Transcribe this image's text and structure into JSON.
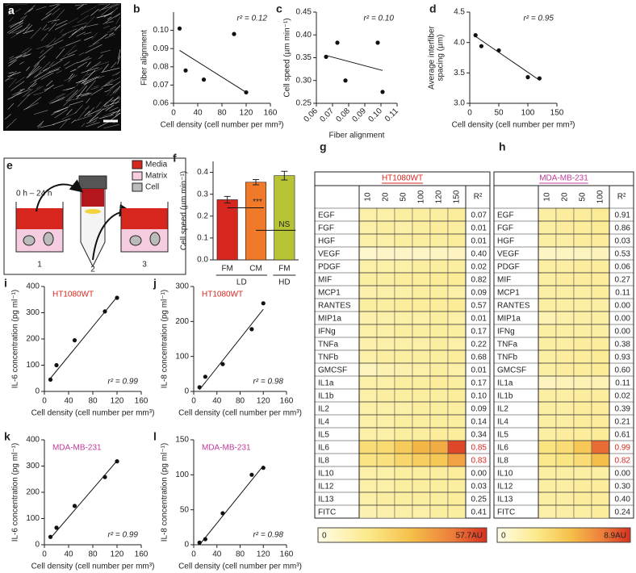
{
  "image": {
    "panel_label": "a"
  },
  "diagram": {
    "panel_label": "e",
    "time": "0 h – 24 h",
    "legend": [
      "Media",
      "Matrix",
      "Cell"
    ],
    "steps": [
      "1",
      "2",
      "3"
    ]
  },
  "chart_data": [
    {
      "type": "scatter",
      "panel_label": "b",
      "x_label": "Cell density (cell number per mm³)",
      "y_label": [
        "Fiber alignment"
      ],
      "x": [
        10,
        20,
        50,
        100,
        120
      ],
      "values": [
        0.101,
        0.078,
        0.073,
        0.098,
        0.066
      ],
      "color": "#111",
      "fit": {
        "x": [
          10,
          120
        ],
        "y": [
          0.089,
          0.066
        ]
      },
      "annotation": "r² = 0.12",
      "annotation_corner": "top-right",
      "xlim": [
        0,
        160
      ],
      "xticks": [
        0,
        40,
        80,
        120,
        160
      ],
      "ylim": [
        0.06,
        0.11
      ],
      "yticks": [
        0.06,
        0.07,
        0.08,
        0.09,
        {
          "value": 0.1,
          "label": "0.10"
        }
      ]
    },
    {
      "type": "scatter",
      "panel_label": "c",
      "x_label": "Fiber alignment",
      "y_label": [
        "Cell speed (µm min⁻¹)"
      ],
      "x": [
        0.066,
        0.073,
        0.078,
        0.098,
        0.101
      ],
      "values": [
        0.352,
        0.383,
        0.3,
        0.383,
        0.275
      ],
      "color": "#111",
      "fit": {
        "x": [
          0.066,
          0.101
        ],
        "y": [
          0.355,
          0.322
        ]
      },
      "annotation": "r² = 0.10",
      "annotation_corner": "top-right",
      "xlim": [
        0.06,
        0.11
      ],
      "xticks": [
        0.06,
        0.07,
        0.08,
        0.09,
        {
          "value": 0.1,
          "label": "0.10"
        },
        0.11
      ],
      "xtick_rotation": -45,
      "ylim": [
        0.25,
        0.45
      ],
      "yticks": [
        0.25,
        {
          "value": 0.3,
          "label": "0.30"
        },
        0.35,
        {
          "value": 0.4,
          "label": "0.40"
        },
        0.45
      ]
    },
    {
      "type": "scatter",
      "panel_label": "d",
      "x_label": "Cell density (cell number per mm³)",
      "y_label": [
        "Average interfiber",
        "spacing (µm)"
      ],
      "x": [
        10,
        20,
        50,
        100,
        120
      ],
      "values": [
        4.12,
        3.94,
        3.87,
        3.43,
        3.41
      ],
      "color": "#111",
      "fit": {
        "x": [
          10,
          120
        ],
        "y": [
          4.1,
          3.38
        ]
      },
      "annotation": "r² = 0.95",
      "annotation_corner": "top-right",
      "xlim": [
        0,
        150
      ],
      "xticks": [
        0,
        50,
        100,
        150
      ],
      "ylim": [
        3.0,
        4.5
      ],
      "yticks": [
        {
          "value": 3,
          "label": "3.0"
        },
        3.5,
        {
          "value": 4,
          "label": "4.0"
        },
        4.5
      ]
    },
    {
      "type": "bar",
      "panel_label": "f",
      "y_label": [
        "Cell speed (µm min⁻¹)"
      ],
      "categories": [
        "FM",
        "CM",
        "FM"
      ],
      "group_labels": [
        "LD",
        "HD"
      ],
      "values": [
        0.275,
        0.355,
        0.385
      ],
      "errors": [
        0.015,
        0.012,
        0.02
      ],
      "colors": [
        "#d7261e",
        "#f07a2a",
        "#b5c334"
      ],
      "annotations": [
        "***",
        "NS"
      ],
      "ylim": [
        0,
        0.45
      ],
      "yticks": [
        {
          "value": 0,
          "label": "0.0"
        },
        0.1,
        0.2,
        0.3,
        0.4
      ]
    },
    {
      "type": "heatmap",
      "panel_label": "g",
      "title": "HT1080WT",
      "title_color": "#d7261e",
      "columns": [
        10,
        20,
        50,
        100,
        120,
        150
      ],
      "r2_header": "R²",
      "rows": [
        "EGF",
        "FGF",
        "HGF",
        "VEGF",
        "PDGF",
        "MIF",
        "MCP1",
        "RANTES",
        "MIP1a",
        "IFNg",
        "TNFa",
        "TNFb",
        "GMCSF",
        "IL1a",
        "IL1b",
        "IL2",
        "IL4",
        "IL5",
        "IL6",
        "IL8",
        "IL10",
        "IL12",
        "IL13",
        "FITC"
      ],
      "values": [
        [
          12,
          12,
          13,
          13,
          13,
          14
        ],
        [
          12,
          13,
          12,
          13,
          14,
          13
        ],
        [
          12,
          12,
          13,
          13,
          13,
          14
        ],
        [
          5,
          6,
          6,
          6,
          7,
          7
        ],
        [
          12,
          12,
          12,
          13,
          13,
          13
        ],
        [
          13,
          13,
          14,
          14,
          15,
          15
        ],
        [
          11,
          12,
          12,
          13,
          13,
          12
        ],
        [
          13,
          13,
          14,
          14,
          14,
          15
        ],
        [
          11,
          12,
          12,
          12,
          13,
          12
        ],
        [
          12,
          12,
          13,
          13,
          13,
          13
        ],
        [
          11,
          12,
          12,
          12,
          13,
          12
        ],
        [
          12,
          13,
          13,
          13,
          13,
          14
        ],
        [
          8,
          10,
          11,
          12,
          13,
          12
        ],
        [
          12,
          12,
          13,
          13,
          14,
          13
        ],
        [
          12,
          13,
          13,
          13,
          13,
          14
        ],
        [
          12,
          12,
          12,
          13,
          13,
          13
        ],
        [
          12,
          12,
          13,
          13,
          13,
          13
        ],
        [
          12,
          12,
          13,
          13,
          14,
          14
        ],
        [
          22,
          23,
          28,
          34,
          36,
          54
        ],
        [
          19,
          20,
          24,
          27,
          29,
          38
        ],
        [
          12,
          12,
          13,
          13,
          13,
          14
        ],
        [
          12,
          12,
          13,
          13,
          13,
          13
        ],
        [
          12,
          13,
          13,
          13,
          13,
          14
        ],
        [
          10,
          11,
          12,
          12,
          13,
          13
        ]
      ],
      "r2": [
        0.07,
        0.01,
        0.01,
        {
          "value": 0.4,
          "label": "0.40"
        },
        0.02,
        0.82,
        0.09,
        0.57,
        0.01,
        0.17,
        0.22,
        0.68,
        0.01,
        0.17,
        {
          "value": 0.1,
          "label": "0.10"
        },
        0.09,
        0.14,
        0.34,
        0.85,
        0.83,
        {
          "value": 0,
          "label": "0.00"
        },
        0.03,
        0.25,
        0.41
      ],
      "highlight_rows": [
        18,
        19
      ],
      "highlight_color": "#d7261e",
      "zlim": [
        0,
        57.7
      ],
      "colorbar_ticks": [
        0,
        {
          "value": 57.7,
          "label": "57.7AU"
        }
      ]
    },
    {
      "type": "heatmap",
      "panel_label": "h",
      "title": "MDA-MB-231",
      "title_color": "#c0399a",
      "columns": [
        10,
        20,
        50,
        100
      ],
      "r2_header": "R²",
      "rows": [
        "EGF",
        "FGF",
        "HGF",
        "VEGF",
        "PDGF",
        "MIF",
        "MCP1",
        "RANTES",
        "MIP1a",
        "IFNg",
        "TNFa",
        "TNFb",
        "GMCSF",
        "IL1a",
        "IL1b",
        "IL2",
        "IL4",
        "IL5",
        "IL6",
        "IL8",
        "IL10",
        "IL12",
        "IL13",
        "FITC"
      ],
      "values": [
        [
          2.0,
          2.1,
          2.2,
          2.4
        ],
        [
          2.0,
          2.1,
          2.2,
          2.4
        ],
        [
          2.0,
          2.0,
          2.1,
          2.2
        ],
        [
          1.0,
          1.1,
          1.2,
          1.3
        ],
        [
          2.0,
          2.0,
          2.1,
          2.1
        ],
        [
          2.0,
          2.1,
          2.1,
          2.2
        ],
        [
          1.9,
          2.0,
          2.0,
          2.1
        ],
        [
          2.0,
          2.0,
          2.0,
          2.0
        ],
        [
          1.5,
          1.8,
          1.9,
          2.0
        ],
        [
          2.0,
          2.0,
          2.0,
          2.0
        ],
        [
          2.0,
          2.0,
          2.1,
          2.1
        ],
        [
          2.0,
          2.1,
          2.2,
          2.4
        ],
        [
          2.0,
          2.1,
          2.2,
          2.3
        ],
        [
          1.2,
          1.4,
          1.5,
          1.5
        ],
        [
          2.0,
          2.0,
          2.1,
          2.1
        ],
        [
          2.0,
          2.0,
          2.1,
          2.2
        ],
        [
          2.0,
          2.0,
          2.1,
          2.2
        ],
        [
          2.0,
          2.1,
          2.2,
          2.3
        ],
        [
          3.0,
          3.4,
          4.5,
          7.5
        ],
        [
          2.6,
          2.9,
          3.4,
          5.0
        ],
        [
          2.0,
          2.0,
          2.0,
          2.0
        ],
        [
          2.0,
          2.0,
          2.1,
          2.2
        ],
        [
          2.0,
          2.0,
          2.1,
          2.2
        ],
        [
          1.8,
          1.9,
          2.0,
          2.1
        ]
      ],
      "r2": [
        0.91,
        0.86,
        0.03,
        0.53,
        0.06,
        0.27,
        0.11,
        {
          "value": 0,
          "label": "0.00"
        },
        {
          "value": 0,
          "label": "0.00"
        },
        {
          "value": 0,
          "label": "0.00"
        },
        0.38,
        0.93,
        {
          "value": 0.6,
          "label": "0.60"
        },
        0.11,
        0.02,
        0.39,
        0.21,
        0.61,
        0.99,
        0.82,
        {
          "value": 0,
          "label": "0.00"
        },
        {
          "value": 0.3,
          "label": "0.30"
        },
        {
          "value": 0.4,
          "label": "0.40"
        },
        0.24
      ],
      "highlight_rows": [
        18,
        19
      ],
      "highlight_color": "#d7261e",
      "zlim": [
        0,
        8.9
      ],
      "colorbar_ticks": [
        0,
        {
          "value": 8.9,
          "label": "8.9AU"
        }
      ]
    },
    {
      "type": "scatter",
      "panel_label": "i",
      "x_label": "Cell density (cell number per mm³)",
      "y_label": [
        "IL-6 concentration (pg ml⁻¹)"
      ],
      "condition": "HT1080WT",
      "condition_color": "#d7261e",
      "x": [
        10,
        20,
        50,
        100,
        120
      ],
      "values": [
        45,
        100,
        195,
        305,
        357
      ],
      "color": "#111",
      "fit": {
        "x": [
          10,
          120
        ],
        "y": [
          50,
          360
        ]
      },
      "annotation": "r² = 0.99",
      "annotation_corner": "bottom-right",
      "xlim": [
        0,
        160
      ],
      "xticks": [
        0,
        40,
        80,
        120,
        160
      ],
      "ylim": [
        0,
        400
      ],
      "yticks": [
        0,
        100,
        200,
        300,
        400
      ]
    },
    {
      "type": "scatter",
      "panel_label": "j",
      "x_label": "Cell density (cell number per mm³)",
      "y_label": [
        "IL-8 concentration (pg ml⁻¹)"
      ],
      "condition": "HT1080WT",
      "condition_color": "#d7261e",
      "x": [
        10,
        20,
        50,
        100,
        120
      ],
      "values": [
        12,
        42,
        78,
        178,
        252
      ],
      "color": "#111",
      "fit": {
        "x": [
          10,
          120
        ],
        "y": [
          5,
          235
        ]
      },
      "annotation": "r² = 0.98",
      "annotation_corner": "bottom-right",
      "xlim": [
        0,
        160
      ],
      "xticks": [
        0,
        40,
        80,
        120,
        160
      ],
      "ylim": [
        0,
        300
      ],
      "yticks": [
        0,
        100,
        200,
        300
      ]
    },
    {
      "type": "scatter",
      "panel_label": "k",
      "x_label": "Cell density (cell number per mm³)",
      "y_label": [
        "IL-6 concentration (pg ml⁻¹)"
      ],
      "condition": "MDA-MB-231",
      "condition_color": "#c0399a",
      "x": [
        10,
        20,
        50,
        100,
        120
      ],
      "values": [
        30,
        65,
        148,
        258,
        318
      ],
      "color": "#111",
      "fit": {
        "x": [
          10,
          120
        ],
        "y": [
          25,
          320
        ]
      },
      "annotation": "r² = 0.99",
      "annotation_corner": "bottom-right",
      "xlim": [
        0,
        160
      ],
      "xticks": [
        0,
        40,
        80,
        120,
        160
      ],
      "ylim": [
        0,
        400
      ],
      "yticks": [
        0,
        100,
        200,
        300,
        400
      ]
    },
    {
      "type": "scatter",
      "panel_label": "l",
      "x_label": "Cell density (cell number per mm³)",
      "y_label": [
        "IL-8 concentration (pg ml⁻¹)"
      ],
      "condition": "MDA-MB-231",
      "condition_color": "#c0399a",
      "x": [
        10,
        20,
        50,
        100,
        120
      ],
      "values": [
        3,
        8,
        45,
        100,
        110
      ],
      "color": "#111",
      "fit": {
        "x": [
          10,
          120
        ],
        "y": [
          0,
          113
        ]
      },
      "annotation": "r² = 0.98",
      "annotation_corner": "bottom-right",
      "xlim": [
        0,
        160
      ],
      "xticks": [
        0,
        40,
        80,
        120,
        160
      ],
      "ylim": [
        0,
        150
      ],
      "yticks": [
        0,
        50,
        100,
        150
      ]
    }
  ]
}
